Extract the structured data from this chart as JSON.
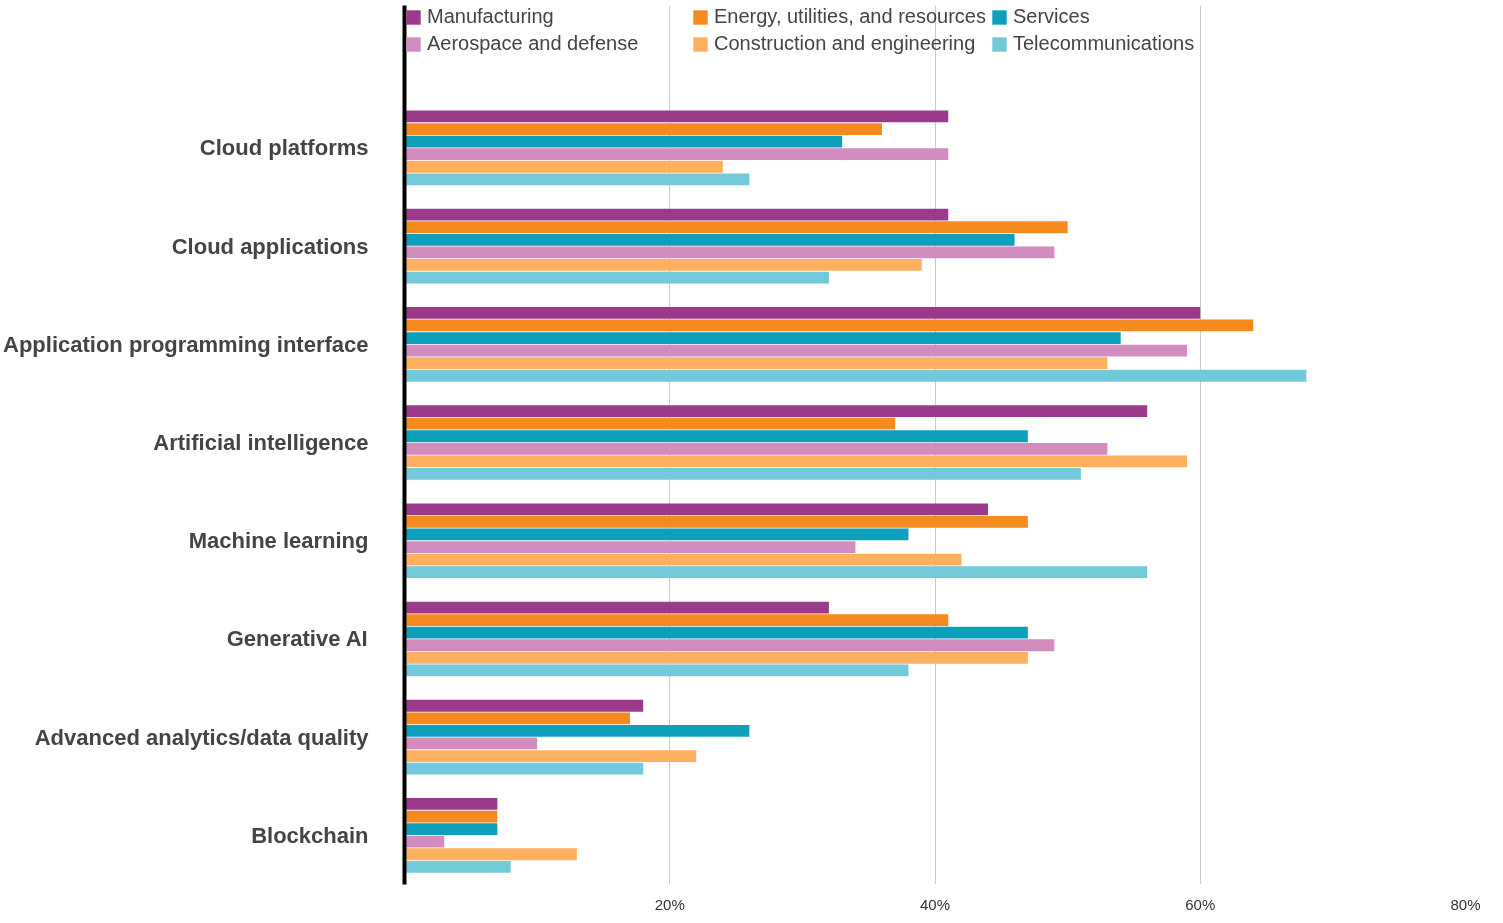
{
  "chart_data": {
    "type": "bar",
    "orientation": "horizontal",
    "categories": [
      "Cloud platforms",
      "Cloud applications",
      "Application programming interface",
      "Artificial intelligence",
      "Machine learning",
      "Generative AI",
      "Advanced analytics/data quality",
      "Blockchain"
    ],
    "series": [
      {
        "name": "Manufacturing",
        "color": "#9b3a8a",
        "values": [
          41,
          41,
          60,
          56,
          44,
          32,
          18,
          7
        ]
      },
      {
        "name": "Energy, utilities, and resources",
        "color": "#f58a1f",
        "values": [
          36,
          50,
          64,
          37,
          47,
          41,
          17,
          7
        ]
      },
      {
        "name": "Services",
        "color": "#0e9fba",
        "values": [
          33,
          46,
          54,
          47,
          38,
          47,
          26,
          7
        ]
      },
      {
        "name": "Aerospace and defense",
        "color": "#d38cc0",
        "values": [
          41,
          49,
          59,
          53,
          34,
          49,
          10,
          3
        ]
      },
      {
        "name": "Construction and engineering",
        "color": "#fdb05f",
        "values": [
          24,
          39,
          53,
          59,
          42,
          47,
          22,
          13
        ]
      },
      {
        "name": "Telecommunications",
        "color": "#71c9d9",
        "values": [
          26,
          32,
          68,
          51,
          56,
          38,
          18,
          8
        ]
      }
    ],
    "xlim": [
      0,
      80
    ],
    "xticks": [
      {
        "value": 20,
        "label": "20%"
      },
      {
        "value": 40,
        "label": "40%"
      },
      {
        "value": 60,
        "label": "60%"
      },
      {
        "value": 80,
        "label": "80%"
      }
    ],
    "grid": "x",
    "legend": "top"
  }
}
